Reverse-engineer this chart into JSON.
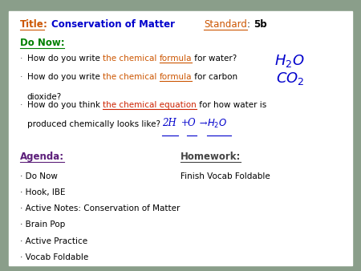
{
  "bg_color": "#8a9e8a",
  "content_bg": "#ffffff",
  "title_label_color": "#cc5500",
  "title_text_color": "#0000cc",
  "standard_label_color": "#cc5500",
  "donow_color": "#008000",
  "bullet_color": "#444444",
  "formula_color": "#cc5500",
  "equation_color": "#cc2200",
  "agenda_color": "#5c1f7a",
  "handwritten_color": "#0000cc",
  "fs_title": 8.5,
  "fs_body": 7.5,
  "fs_hand_h2o": 13,
  "fs_hand_co2": 13,
  "fs_hand_eq": 8.5,
  "agenda_items": [
    "Do Now",
    "Hook, IBE",
    "Active Notes: Conservation of Matter",
    "Brain Pop",
    "Active Practice",
    "Vocab Foldable"
  ],
  "homework_items": [
    "Finish Vocab Foldable"
  ]
}
